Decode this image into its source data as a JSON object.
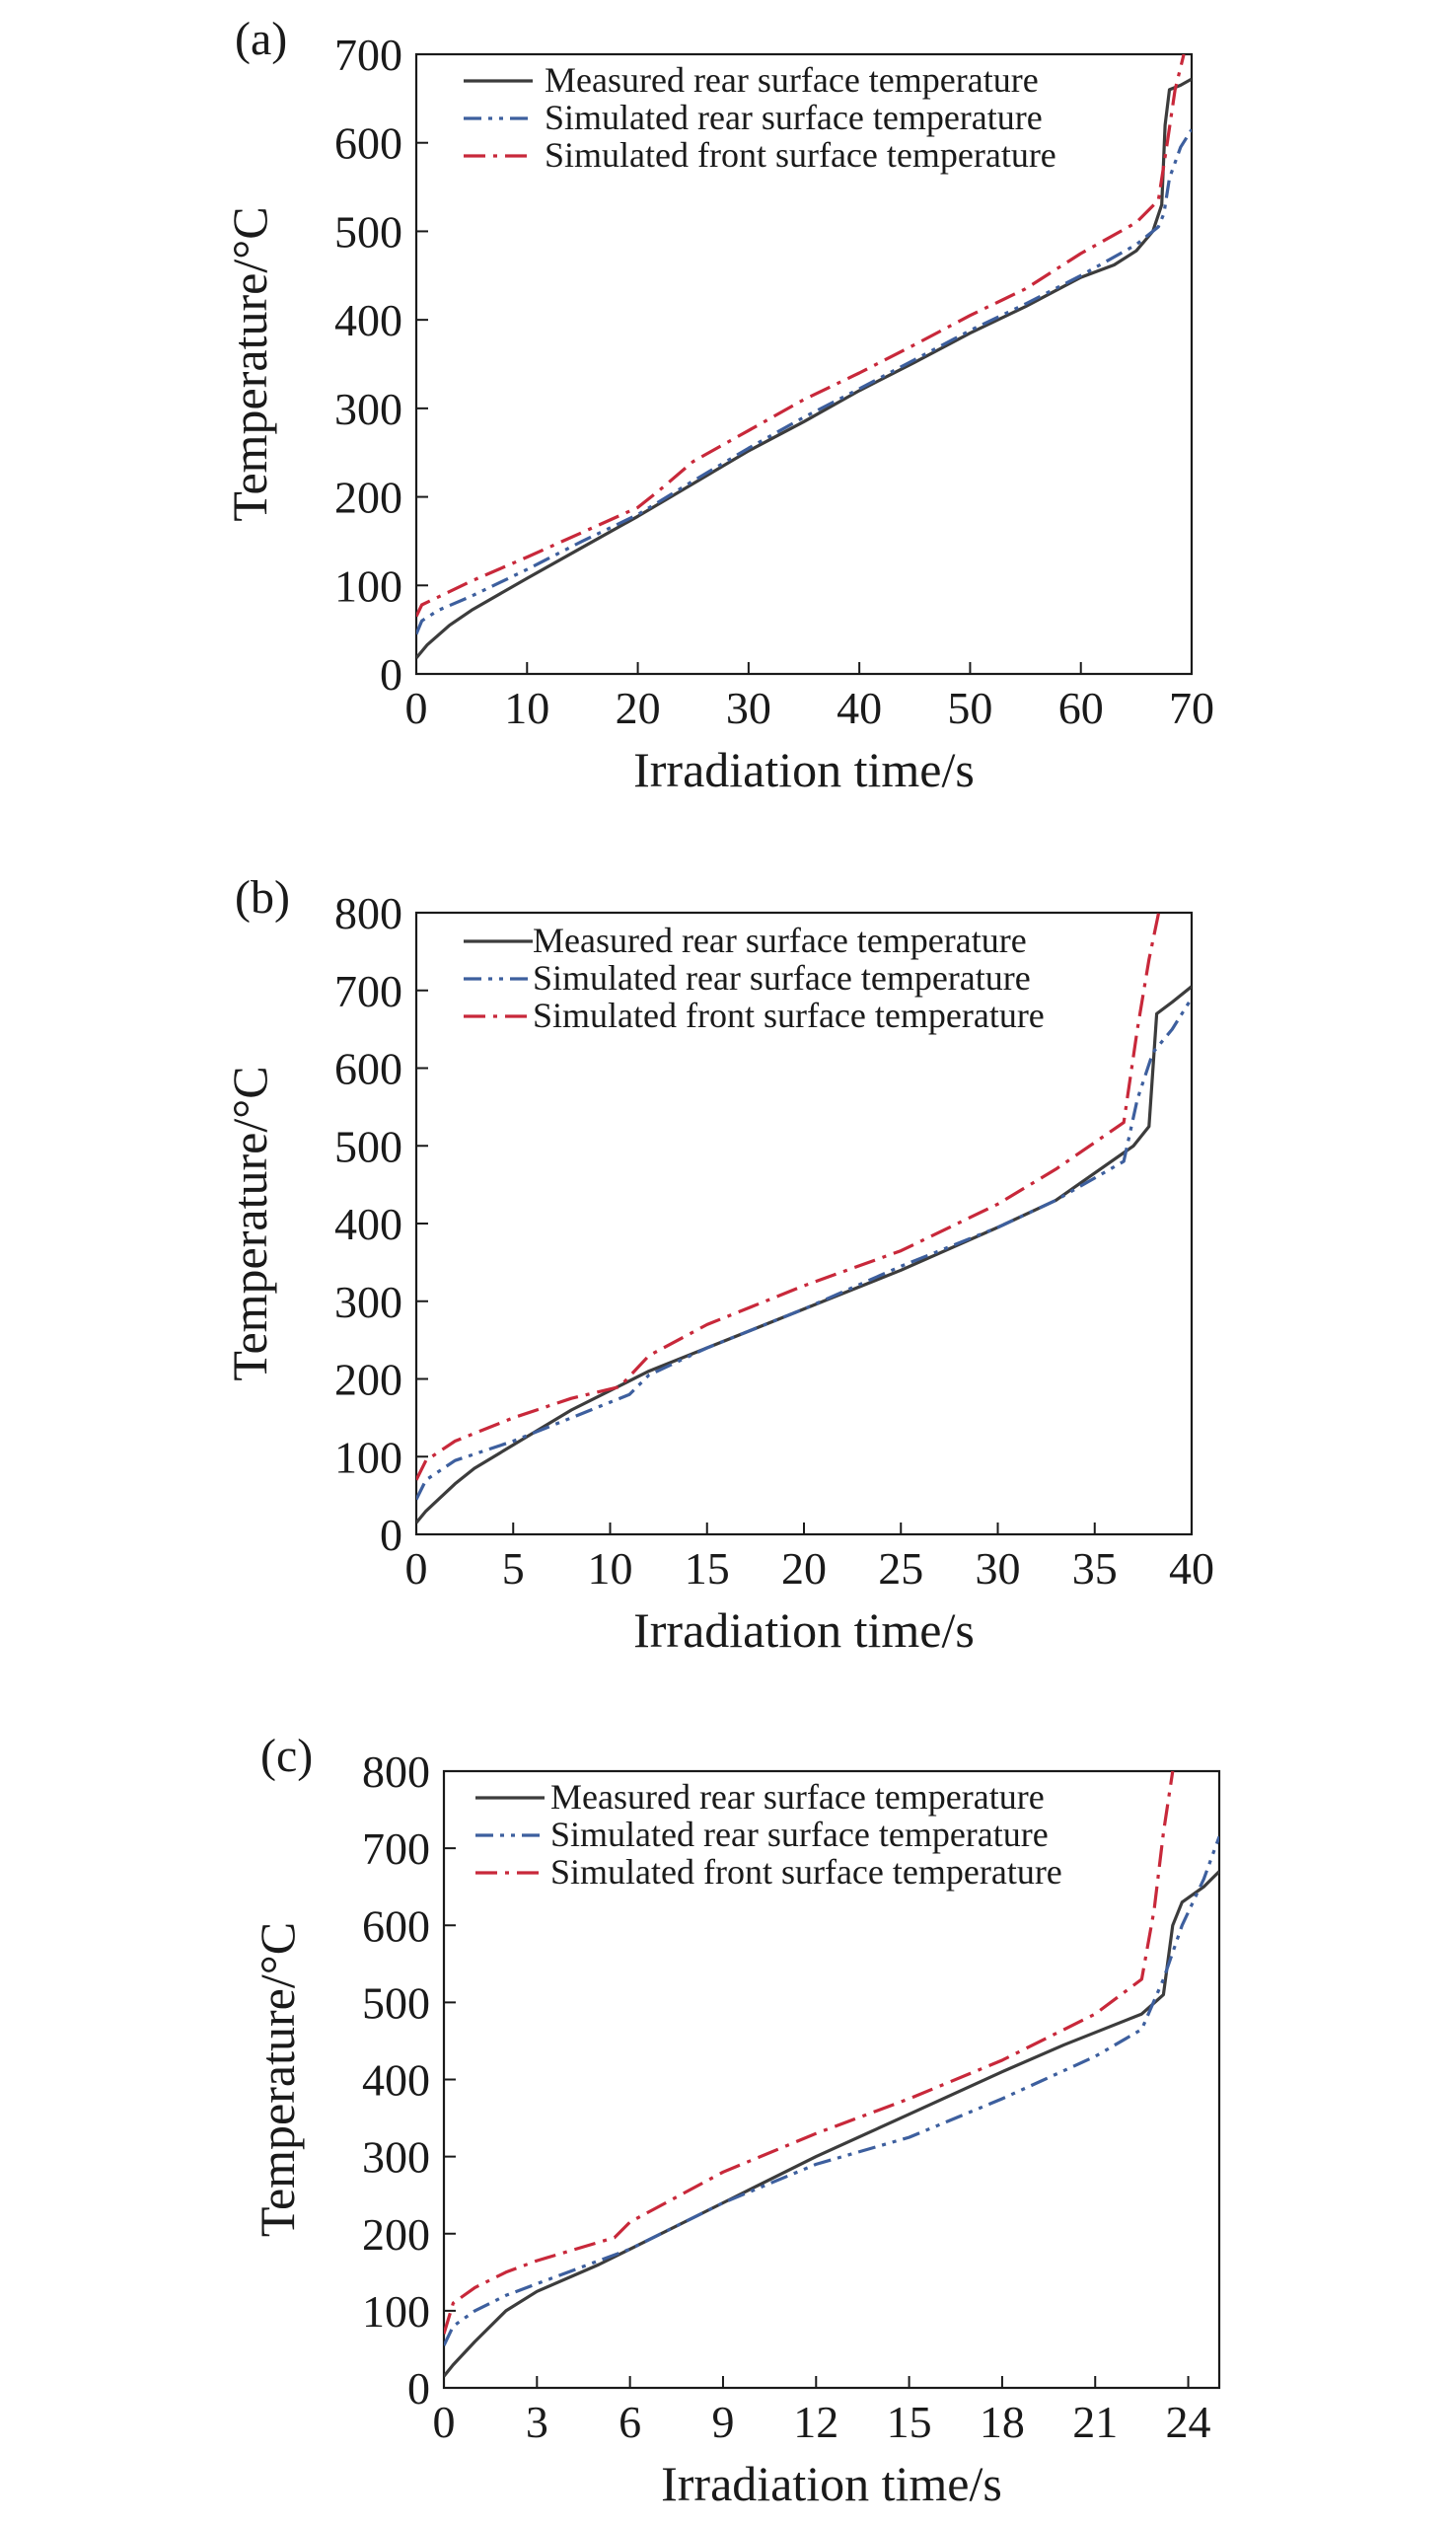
{
  "colors": {
    "measured": "#3c3c3c",
    "simulated_rear": "#3d5f9e",
    "simulated_front": "#c8283a",
    "axis": "#1a1a1a"
  },
  "chart_data": [
    {
      "panel_label": "(a)",
      "type": "line",
      "xlabel": "Irradiation time/s",
      "ylabel": "Temperature/°C",
      "xlim": [
        0,
        70
      ],
      "ylim": [
        0,
        700
      ],
      "xticks": [
        0,
        10,
        20,
        30,
        40,
        50,
        60,
        70
      ],
      "yticks": [
        0,
        100,
        200,
        300,
        400,
        500,
        600,
        700
      ],
      "legend_position": "top-left",
      "series": [
        {
          "name": "Measured rear surface temperature",
          "style": "solid",
          "color_key": "measured",
          "x": [
            0,
            1,
            3,
            5,
            10,
            15,
            20,
            25,
            30,
            35,
            40,
            45,
            50,
            55,
            60,
            63,
            65,
            66.5,
            67.3,
            67.6,
            68,
            69,
            70
          ],
          "y": [
            18,
            33,
            55,
            72,
            108,
            143,
            178,
            215,
            252,
            285,
            320,
            352,
            385,
            415,
            448,
            462,
            478,
            500,
            530,
            620,
            660,
            665,
            672
          ]
        },
        {
          "name": "Simulated rear surface temperature",
          "style": "dash-dot-dot",
          "color_key": "simulated_rear",
          "x": [
            0,
            0.5,
            2,
            5,
            10,
            15,
            20,
            25,
            30,
            35,
            40,
            45,
            50,
            55,
            60,
            65,
            67,
            67.5,
            68,
            69,
            70
          ],
          "y": [
            45,
            60,
            72,
            88,
            118,
            150,
            180,
            218,
            255,
            290,
            322,
            355,
            388,
            418,
            450,
            485,
            505,
            520,
            560,
            595,
            615
          ]
        },
        {
          "name": "Simulated front surface temperature",
          "style": "dash-dot",
          "color_key": "simulated_front",
          "x": [
            0,
            0.5,
            3,
            5,
            10,
            15,
            20,
            22,
            25,
            30,
            35,
            40,
            45,
            50,
            55,
            60,
            65,
            67,
            67.8,
            68.5,
            69.3
          ],
          "y": [
            65,
            78,
            93,
            105,
            132,
            160,
            188,
            208,
            240,
            275,
            310,
            340,
            372,
            405,
            435,
            475,
            510,
            535,
            600,
            660,
            700
          ]
        }
      ]
    },
    {
      "panel_label": "(b)",
      "type": "line",
      "xlabel": "Irradiation time/s",
      "ylabel": "Temperature/°C",
      "xlim": [
        0,
        40
      ],
      "ylim": [
        0,
        800
      ],
      "xticks": [
        0,
        5,
        10,
        15,
        20,
        25,
        30,
        35,
        40
      ],
      "yticks": [
        0,
        100,
        200,
        300,
        400,
        500,
        600,
        700,
        800
      ],
      "legend_position": "top-left",
      "series": [
        {
          "name": "Measured rear surface temperature",
          "style": "solid",
          "color_key": "measured",
          "x": [
            0,
            0.5,
            2,
            3,
            5,
            8,
            10,
            12,
            15,
            20,
            25,
            30,
            33,
            35,
            37,
            37.8,
            38.2,
            39,
            40
          ],
          "y": [
            15,
            30,
            65,
            85,
            115,
            160,
            185,
            210,
            240,
            290,
            340,
            395,
            430,
            465,
            500,
            525,
            670,
            685,
            705
          ]
        },
        {
          "name": "Simulated rear surface temperature",
          "style": "dash-dot-dot",
          "color_key": "simulated_rear",
          "x": [
            0,
            0.5,
            2,
            5,
            8,
            10,
            11,
            12,
            15,
            20,
            25,
            30,
            33,
            36.5,
            37.2,
            38,
            39,
            40
          ],
          "y": [
            45,
            70,
            95,
            120,
            150,
            170,
            180,
            205,
            240,
            290,
            345,
            395,
            430,
            480,
            560,
            620,
            650,
            690
          ]
        },
        {
          "name": "Simulated front surface temperature",
          "style": "dash-dot",
          "color_key": "simulated_front",
          "x": [
            0,
            0.5,
            2,
            5,
            8,
            10.5,
            12,
            15,
            20,
            25,
            30,
            33,
            36.5,
            37.2,
            37.8,
            38.3
          ],
          "y": [
            70,
            95,
            120,
            150,
            175,
            190,
            230,
            270,
            320,
            365,
            425,
            470,
            530,
            650,
            740,
            800
          ]
        }
      ]
    },
    {
      "panel_label": "(c)",
      "type": "line",
      "xlabel": "Irradiation time/s",
      "ylabel": "Temperature/°C",
      "xlim": [
        0,
        25
      ],
      "ylim": [
        0,
        800
      ],
      "xticks": [
        0,
        3,
        6,
        9,
        12,
        15,
        18,
        21,
        24
      ],
      "yticks": [
        0,
        100,
        200,
        300,
        400,
        500,
        600,
        700,
        800
      ],
      "legend_position": "top-left",
      "series": [
        {
          "name": "Measured rear surface temperature",
          "style": "solid",
          "color_key": "measured",
          "x": [
            0,
            0.3,
            1,
            2,
            3,
            5,
            6,
            9,
            12,
            15,
            18,
            20,
            22.5,
            23.2,
            23.5,
            23.8,
            24.5,
            25
          ],
          "y": [
            15,
            30,
            60,
            100,
            125,
            160,
            180,
            240,
            300,
            355,
            410,
            445,
            485,
            510,
            600,
            630,
            650,
            670
          ]
        },
        {
          "name": "Simulated rear surface temperature",
          "style": "dash-dot-dot",
          "color_key": "simulated_rear",
          "x": [
            0,
            0.3,
            1,
            2,
            3,
            6,
            9,
            12,
            15,
            18,
            21,
            22.5,
            23.2,
            23.8,
            24.5,
            25
          ],
          "y": [
            55,
            80,
            100,
            120,
            135,
            180,
            240,
            290,
            325,
            375,
            430,
            465,
            530,
            600,
            660,
            715
          ]
        },
        {
          "name": "Simulated front surface temperature",
          "style": "dash-dot",
          "color_key": "simulated_front",
          "x": [
            0,
            0.3,
            1,
            2,
            3,
            5.5,
            6,
            9,
            12,
            15,
            18,
            21,
            22.5,
            22.9,
            23.2,
            23.5
          ],
          "y": [
            70,
            110,
            130,
            150,
            165,
            195,
            215,
            280,
            330,
            375,
            425,
            485,
            530,
            620,
            720,
            800
          ]
        }
      ]
    }
  ]
}
